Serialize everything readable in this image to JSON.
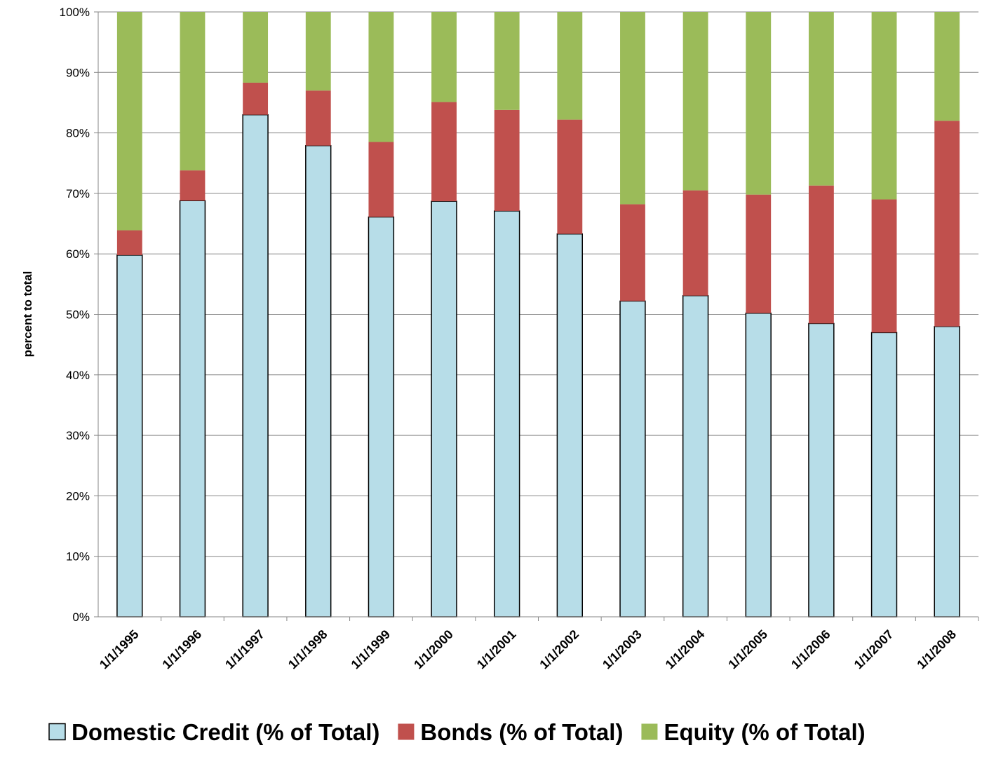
{
  "chart_data": {
    "type": "bar",
    "stacked": true,
    "title": "",
    "xlabel": "",
    "ylabel": "percent to total",
    "ylim": [
      0,
      100
    ],
    "y_ticks": [
      "0%",
      "10%",
      "20%",
      "30%",
      "40%",
      "50%",
      "60%",
      "70%",
      "80%",
      "90%",
      "100%"
    ],
    "grid": true,
    "legend_position": "bottom",
    "categories": [
      "1/1/1995",
      "1/1/1996",
      "1/1/1997",
      "1/1/1998",
      "1/1/1999",
      "1/1/2000",
      "1/1/2001",
      "1/1/2002",
      "1/1/2003",
      "1/1/2004",
      "1/1/2005",
      "1/1/2006",
      "1/1/2007",
      "1/1/2008"
    ],
    "series": [
      {
        "name": "Domestic Credit (% of Total)",
        "color": "#b7dde8",
        "outlined": true,
        "values": [
          59.8,
          68.8,
          83.0,
          77.9,
          66.1,
          68.7,
          67.1,
          63.3,
          52.2,
          53.1,
          50.2,
          48.5,
          47.0,
          48.0
        ]
      },
      {
        "name": "Bonds (% of Total)",
        "color": "#c0504d",
        "values": [
          4.1,
          5.0,
          5.3,
          9.1,
          12.4,
          16.4,
          16.7,
          18.9,
          16.0,
          17.4,
          19.6,
          22.8,
          22.0,
          34.0
        ]
      },
      {
        "name": "Equity (% of Total)",
        "color": "#9bbb59",
        "values": [
          36.1,
          26.2,
          11.7,
          13.0,
          21.5,
          14.9,
          16.2,
          17.8,
          31.8,
          29.5,
          30.2,
          28.7,
          31.0,
          18.0
        ]
      }
    ]
  }
}
